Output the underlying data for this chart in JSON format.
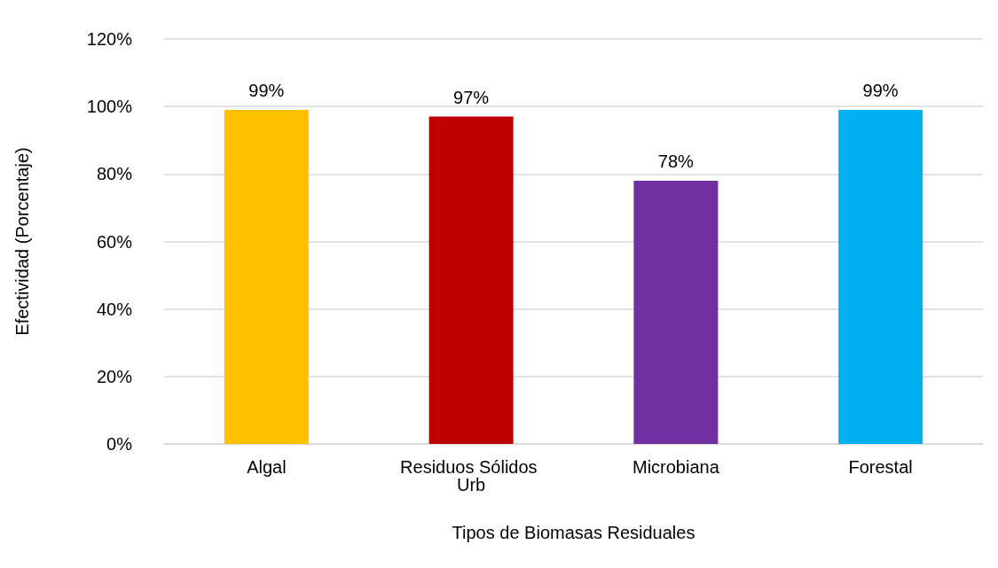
{
  "chart_data": {
    "type": "bar",
    "xlabel": "Tipos de Biomasas Residuales",
    "ylabel": "Efectividad (Porcentaje)",
    "categories": [
      "Algal",
      "Residuos Sólidos Urb",
      "Microbiana",
      "Forestal"
    ],
    "values": [
      99,
      97,
      78,
      99
    ],
    "colors": [
      "#ffc000",
      "#c00000",
      "#7030a0",
      "#00b0f0"
    ],
    "value_labels": [
      "99%",
      "97%",
      "78%",
      "99%"
    ],
    "ylim": [
      0,
      120
    ],
    "yticks": [
      {
        "value": 0,
        "label": "0%"
      },
      {
        "value": 20,
        "label": "20%"
      },
      {
        "value": 40,
        "label": "40%"
      },
      {
        "value": 60,
        "label": "60%"
      },
      {
        "value": 80,
        "label": "80%"
      },
      {
        "value": 100,
        "label": "100%"
      },
      {
        "value": 120,
        "label": "120%"
      }
    ],
    "grid": "y"
  }
}
